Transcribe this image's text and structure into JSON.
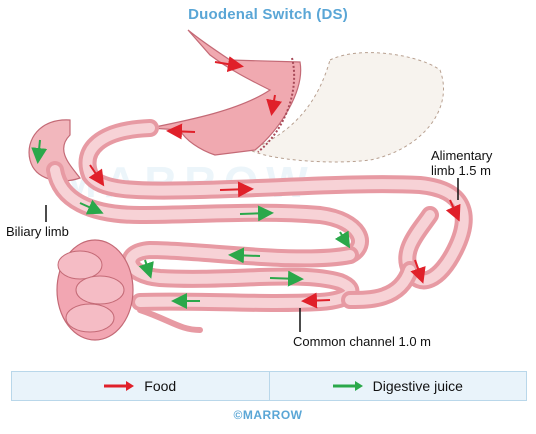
{
  "title": "Duodenal Switch (DS)",
  "labels": {
    "alimentary": "Alimentary",
    "alimentary_len": "limb 1.5 m",
    "biliary": "Biliary limb",
    "common": "Common channel 1.0 m"
  },
  "legend": {
    "food": "Food",
    "digestive": "Digestive juice"
  },
  "footer": "©MARROW",
  "watermark": "MARROW",
  "colors": {
    "food_arrow": "#e0202a",
    "juice_arrow": "#2aa84a",
    "title": "#5aa6d6",
    "intestine": "#f2b7bd"
  }
}
